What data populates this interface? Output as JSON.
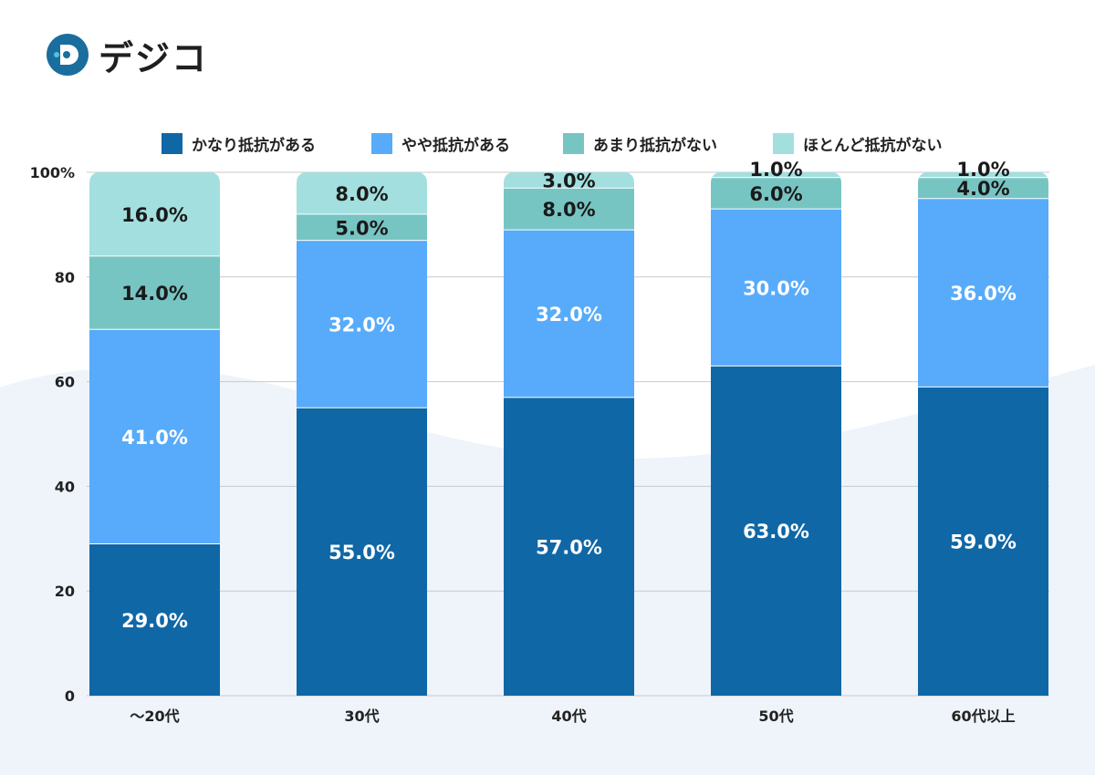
{
  "brand": {
    "name": "デジコ",
    "colors": {
      "mark_bg": "#1a6e9e",
      "mark_accent": "#4fc3d9"
    }
  },
  "chart_data": {
    "type": "bar",
    "stacked": true,
    "categories": [
      "〜20代",
      "30代",
      "40代",
      "50代",
      "60代以上"
    ],
    "series": [
      {
        "name": "かなり抵抗がある",
        "color": "#0f67a6",
        "label_color": "#ffffff",
        "values": [
          29,
          55,
          57,
          63,
          59
        ]
      },
      {
        "name": "やや抵抗がある",
        "color": "#57abfa",
        "label_color": "#ffffff",
        "values": [
          41,
          32,
          32,
          30,
          36
        ]
      },
      {
        "name": "あまり抵抗がない",
        "color": "#77c5c3",
        "label_color": "#1a1a1a",
        "values": [
          14,
          5,
          8,
          6,
          4
        ]
      },
      {
        "name": "ほとんど抵抗がない",
        "color": "#a3dfdf",
        "label_color": "#1a1a1a",
        "values": [
          16,
          8,
          3,
          1,
          1
        ]
      }
    ],
    "value_suffix": "%",
    "value_decimals": 1,
    "ylim": [
      0,
      100
    ],
    "yticks": [
      "0",
      "20",
      "40",
      "60",
      "80",
      "100%"
    ],
    "ytick_values": [
      0,
      20,
      40,
      60,
      80,
      100
    ],
    "grid": true,
    "legend_position": "top"
  }
}
